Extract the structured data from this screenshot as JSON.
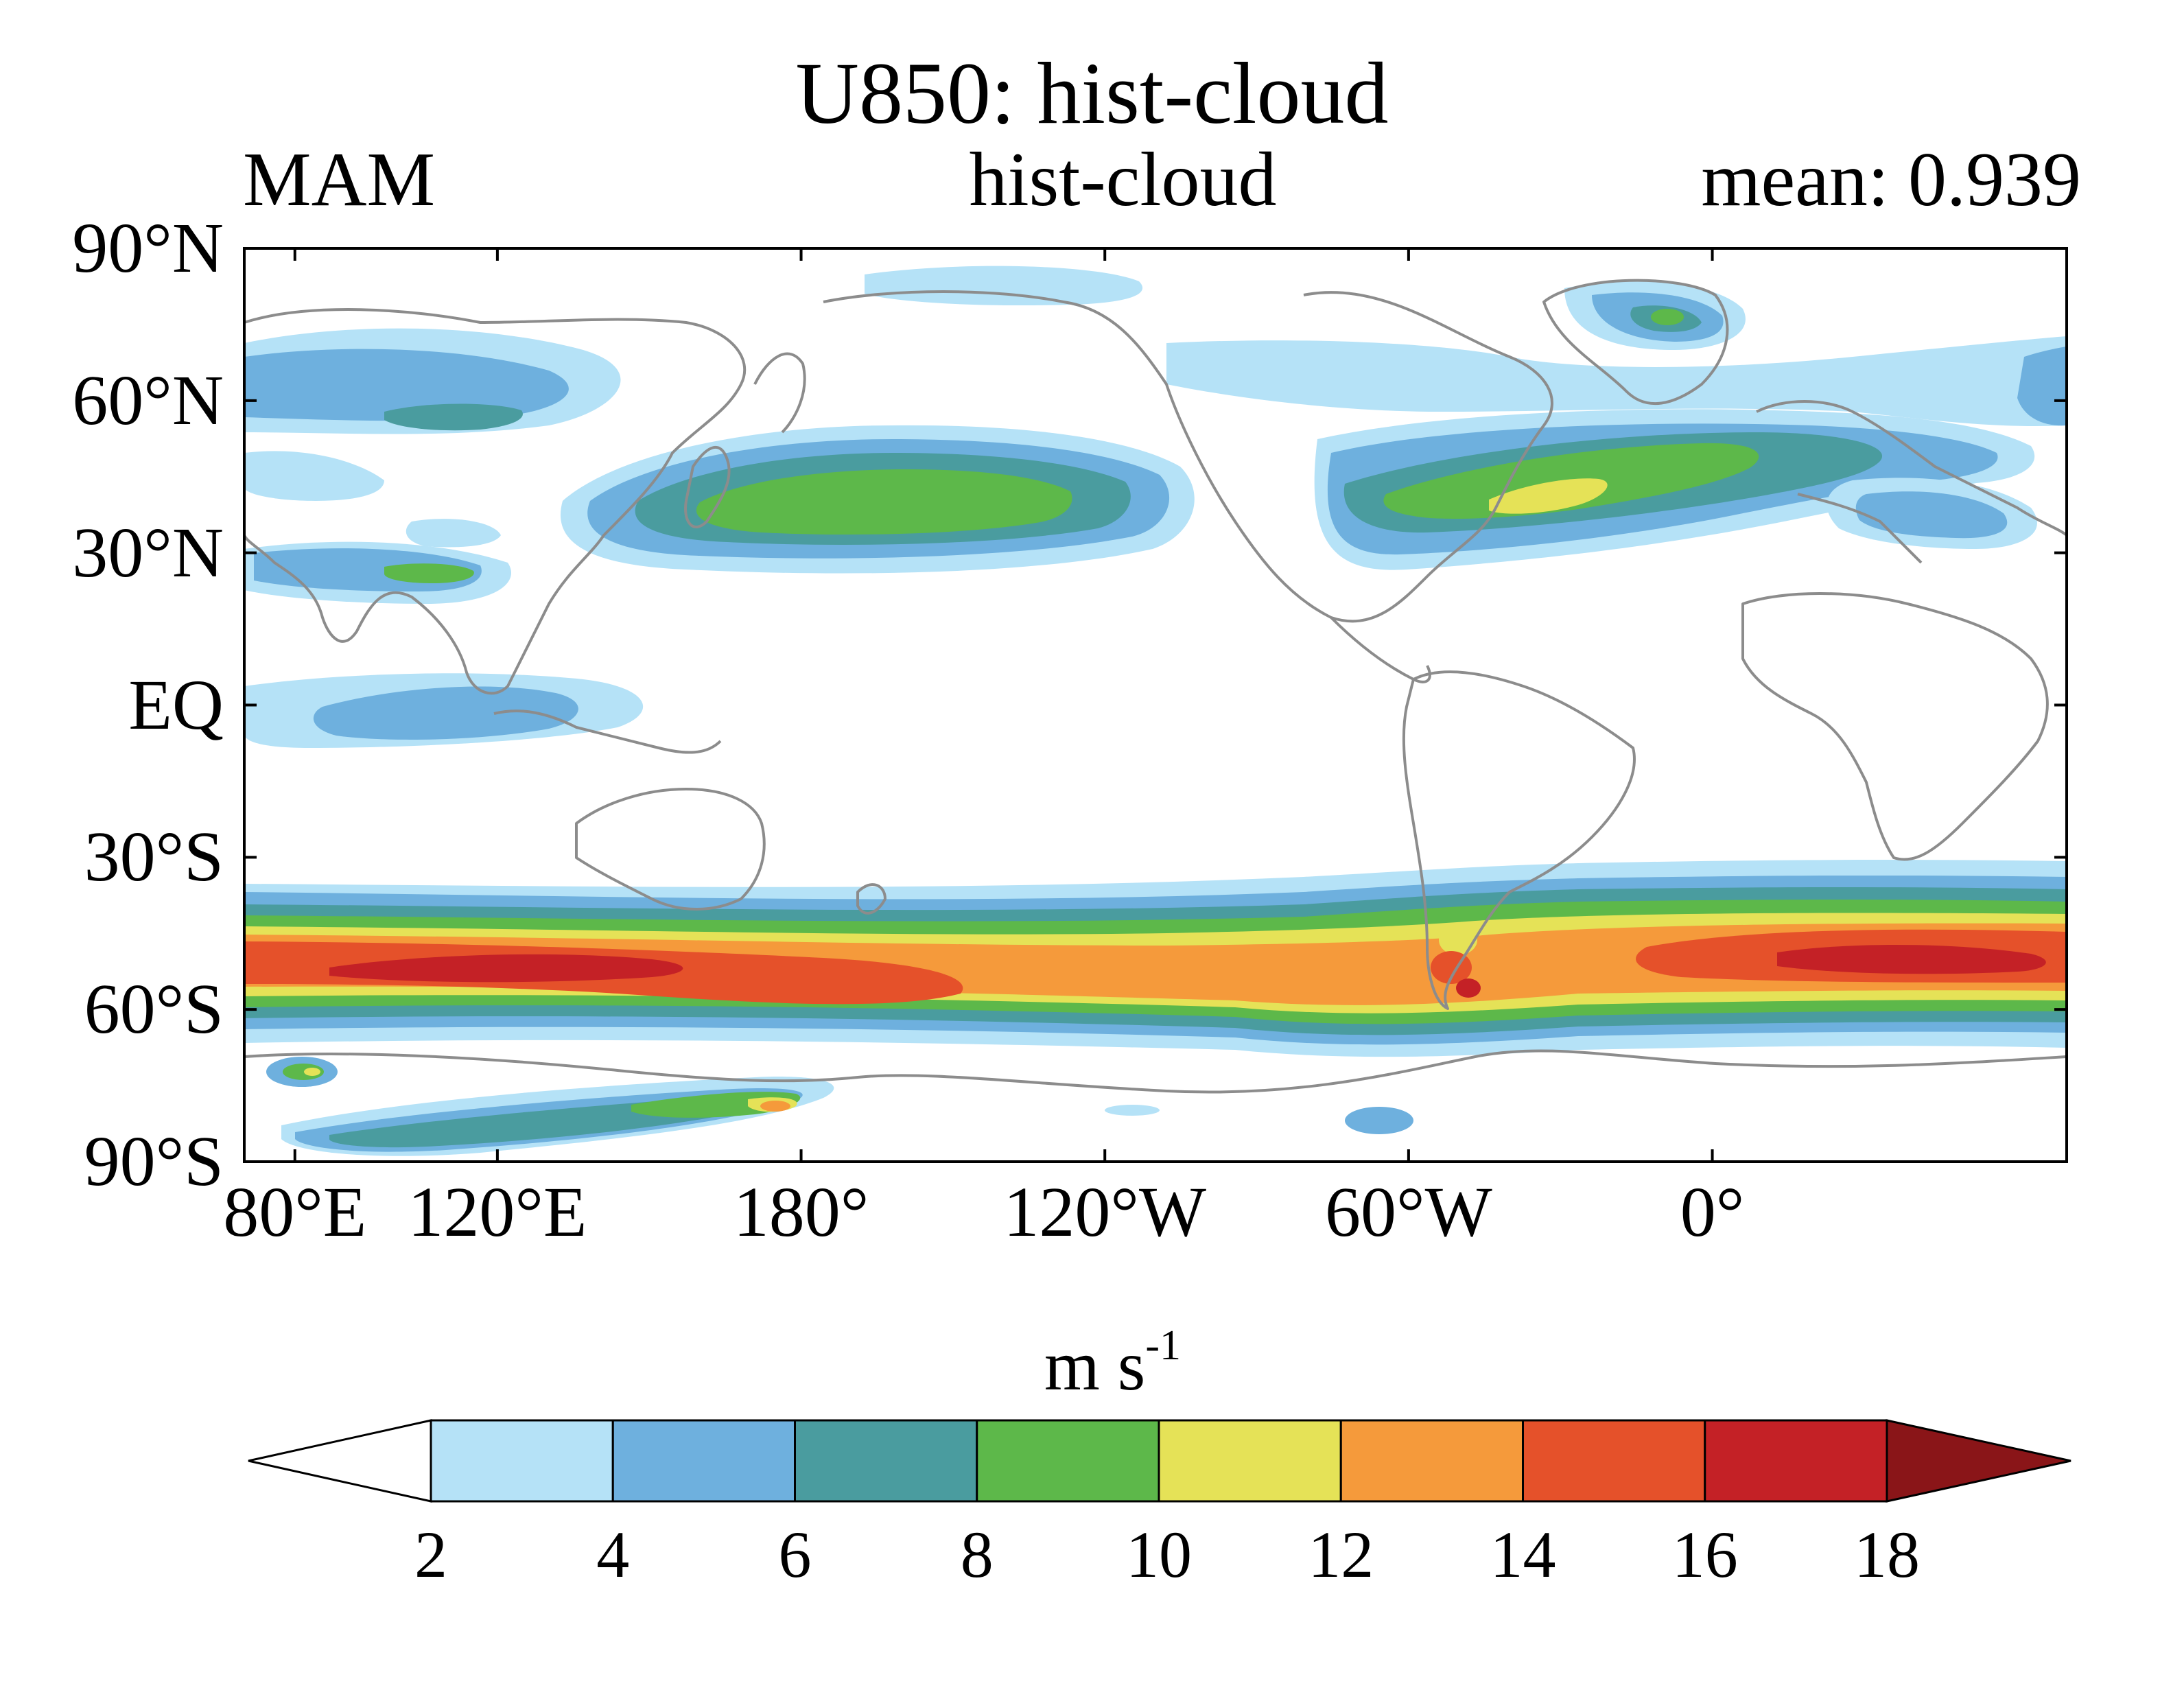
{
  "header": {
    "title": "U850: hist-cloud",
    "left_label": "MAM",
    "center_label": "hist-cloud",
    "right_label": "mean: 0.939"
  },
  "axes": {
    "lat_ticks": [
      "90°N",
      "60°N",
      "30°N",
      "EQ",
      "30°S",
      "60°S",
      "90°S"
    ],
    "lat_values": [
      90,
      60,
      30,
      0,
      -30,
      -60,
      -90
    ],
    "lon_ticks": [
      "80°E",
      "120°E",
      "180°",
      "120°W",
      "60°W",
      "0°"
    ],
    "lon_values": [
      80,
      120,
      180,
      240,
      300,
      360
    ],
    "lon_range": [
      70,
      430
    ],
    "lat_range": [
      -90,
      90
    ]
  },
  "colorbar": {
    "units_base": "m s",
    "units_exp": "-1",
    "levels": [
      "2",
      "4",
      "6",
      "8",
      "10",
      "12",
      "14",
      "16",
      "18"
    ],
    "colors": [
      "#b5e2f7",
      "#6eb0de",
      "#4a9c9f",
      "#5db84a",
      "#e5e257",
      "#f59a3b",
      "#e5512a",
      "#c42126",
      "#8a1518"
    ],
    "extend": "both"
  },
  "colors": {
    "coastline": "#8c8c8c",
    "frame": "#000000"
  }
}
